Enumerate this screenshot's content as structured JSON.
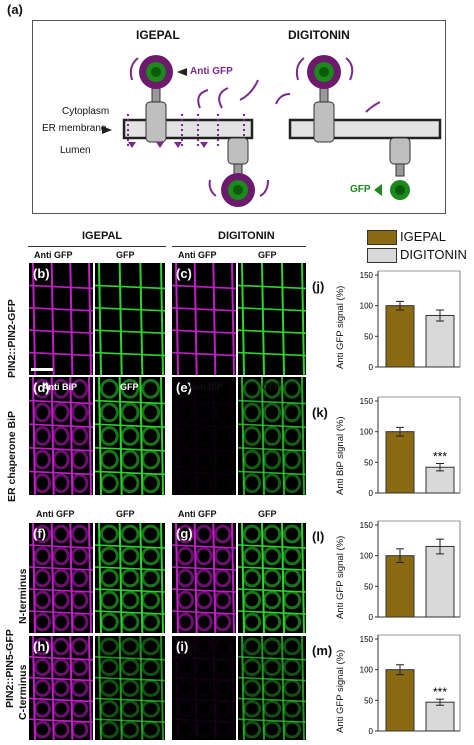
{
  "figure": {
    "panel_a": {
      "letter": "(a)",
      "col_left": "IGEPAL",
      "col_right": "DIGITONIN",
      "anti_gfp": "Anti GFP",
      "cytoplasm": "Cytoplasm",
      "er_membrane": "ER membrane",
      "lumen": "Lumen",
      "gfp": "GFP"
    },
    "legend": {
      "igepal": "IGEPAL",
      "digitonin": "DIGITONIN",
      "igepal_color": "#8a6a12",
      "digitonin_color": "#d9d9d9"
    },
    "micrographs": {
      "header_igepal": "IGEPAL",
      "header_digitonin": "DIGITONIN",
      "row1_side": "PIN2::PIN2-GFP",
      "row2_side": "ER chaperone BiP",
      "pin5_side": "PIN2::PIN5-GFP",
      "nterm": "N-terminus",
      "cterm": "C-terminus",
      "labels": {
        "anti_gfp": "Anti GFP",
        "gfp": "GFP",
        "anti_bip": "Anti BiP"
      },
      "letters": {
        "b": "(b)",
        "c": "(c)",
        "d": "(d)",
        "e": "(e)",
        "f": "(f)",
        "g": "(g)",
        "h": "(h)",
        "i": "(i)"
      },
      "colors": {
        "magenta": "#c21ec8",
        "green": "#2fd42f"
      }
    },
    "chart_data": [
      {
        "type": "bar",
        "letter": "(j)",
        "categories": [
          "IGEPAL",
          "DIGITONIN"
        ],
        "values": [
          100,
          84
        ],
        "errors": [
          7,
          9
        ],
        "ylabel": "Anti GFP signal (%)",
        "ylim": [
          0,
          150
        ],
        "yticks": [
          0,
          50,
          100,
          150
        ],
        "significance": ""
      },
      {
        "type": "bar",
        "letter": "(k)",
        "categories": [
          "IGEPAL",
          "DIGITONIN"
        ],
        "values": [
          100,
          42
        ],
        "errors": [
          7,
          6
        ],
        "ylabel": "Anti BiP signal (%)",
        "ylim": [
          0,
          150
        ],
        "yticks": [
          0,
          50,
          100,
          150
        ],
        "significance": "***"
      },
      {
        "type": "bar",
        "letter": "(l)",
        "categories": [
          "IGEPAL",
          "DIGITONIN"
        ],
        "values": [
          100,
          115
        ],
        "errors": [
          11,
          12
        ],
        "ylabel": "Anti GFP signal (%)",
        "ylim": [
          0,
          150
        ],
        "yticks": [
          0,
          50,
          100,
          150
        ],
        "significance": ""
      },
      {
        "type": "bar",
        "letter": "(m)",
        "categories": [
          "IGEPAL",
          "DIGITONIN"
        ],
        "values": [
          100,
          47
        ],
        "errors": [
          8,
          5
        ],
        "ylabel": "Anti GFP signal (%)",
        "ylim": [
          0,
          150
        ],
        "yticks": [
          0,
          50,
          100,
          150
        ],
        "significance": "***"
      }
    ]
  }
}
